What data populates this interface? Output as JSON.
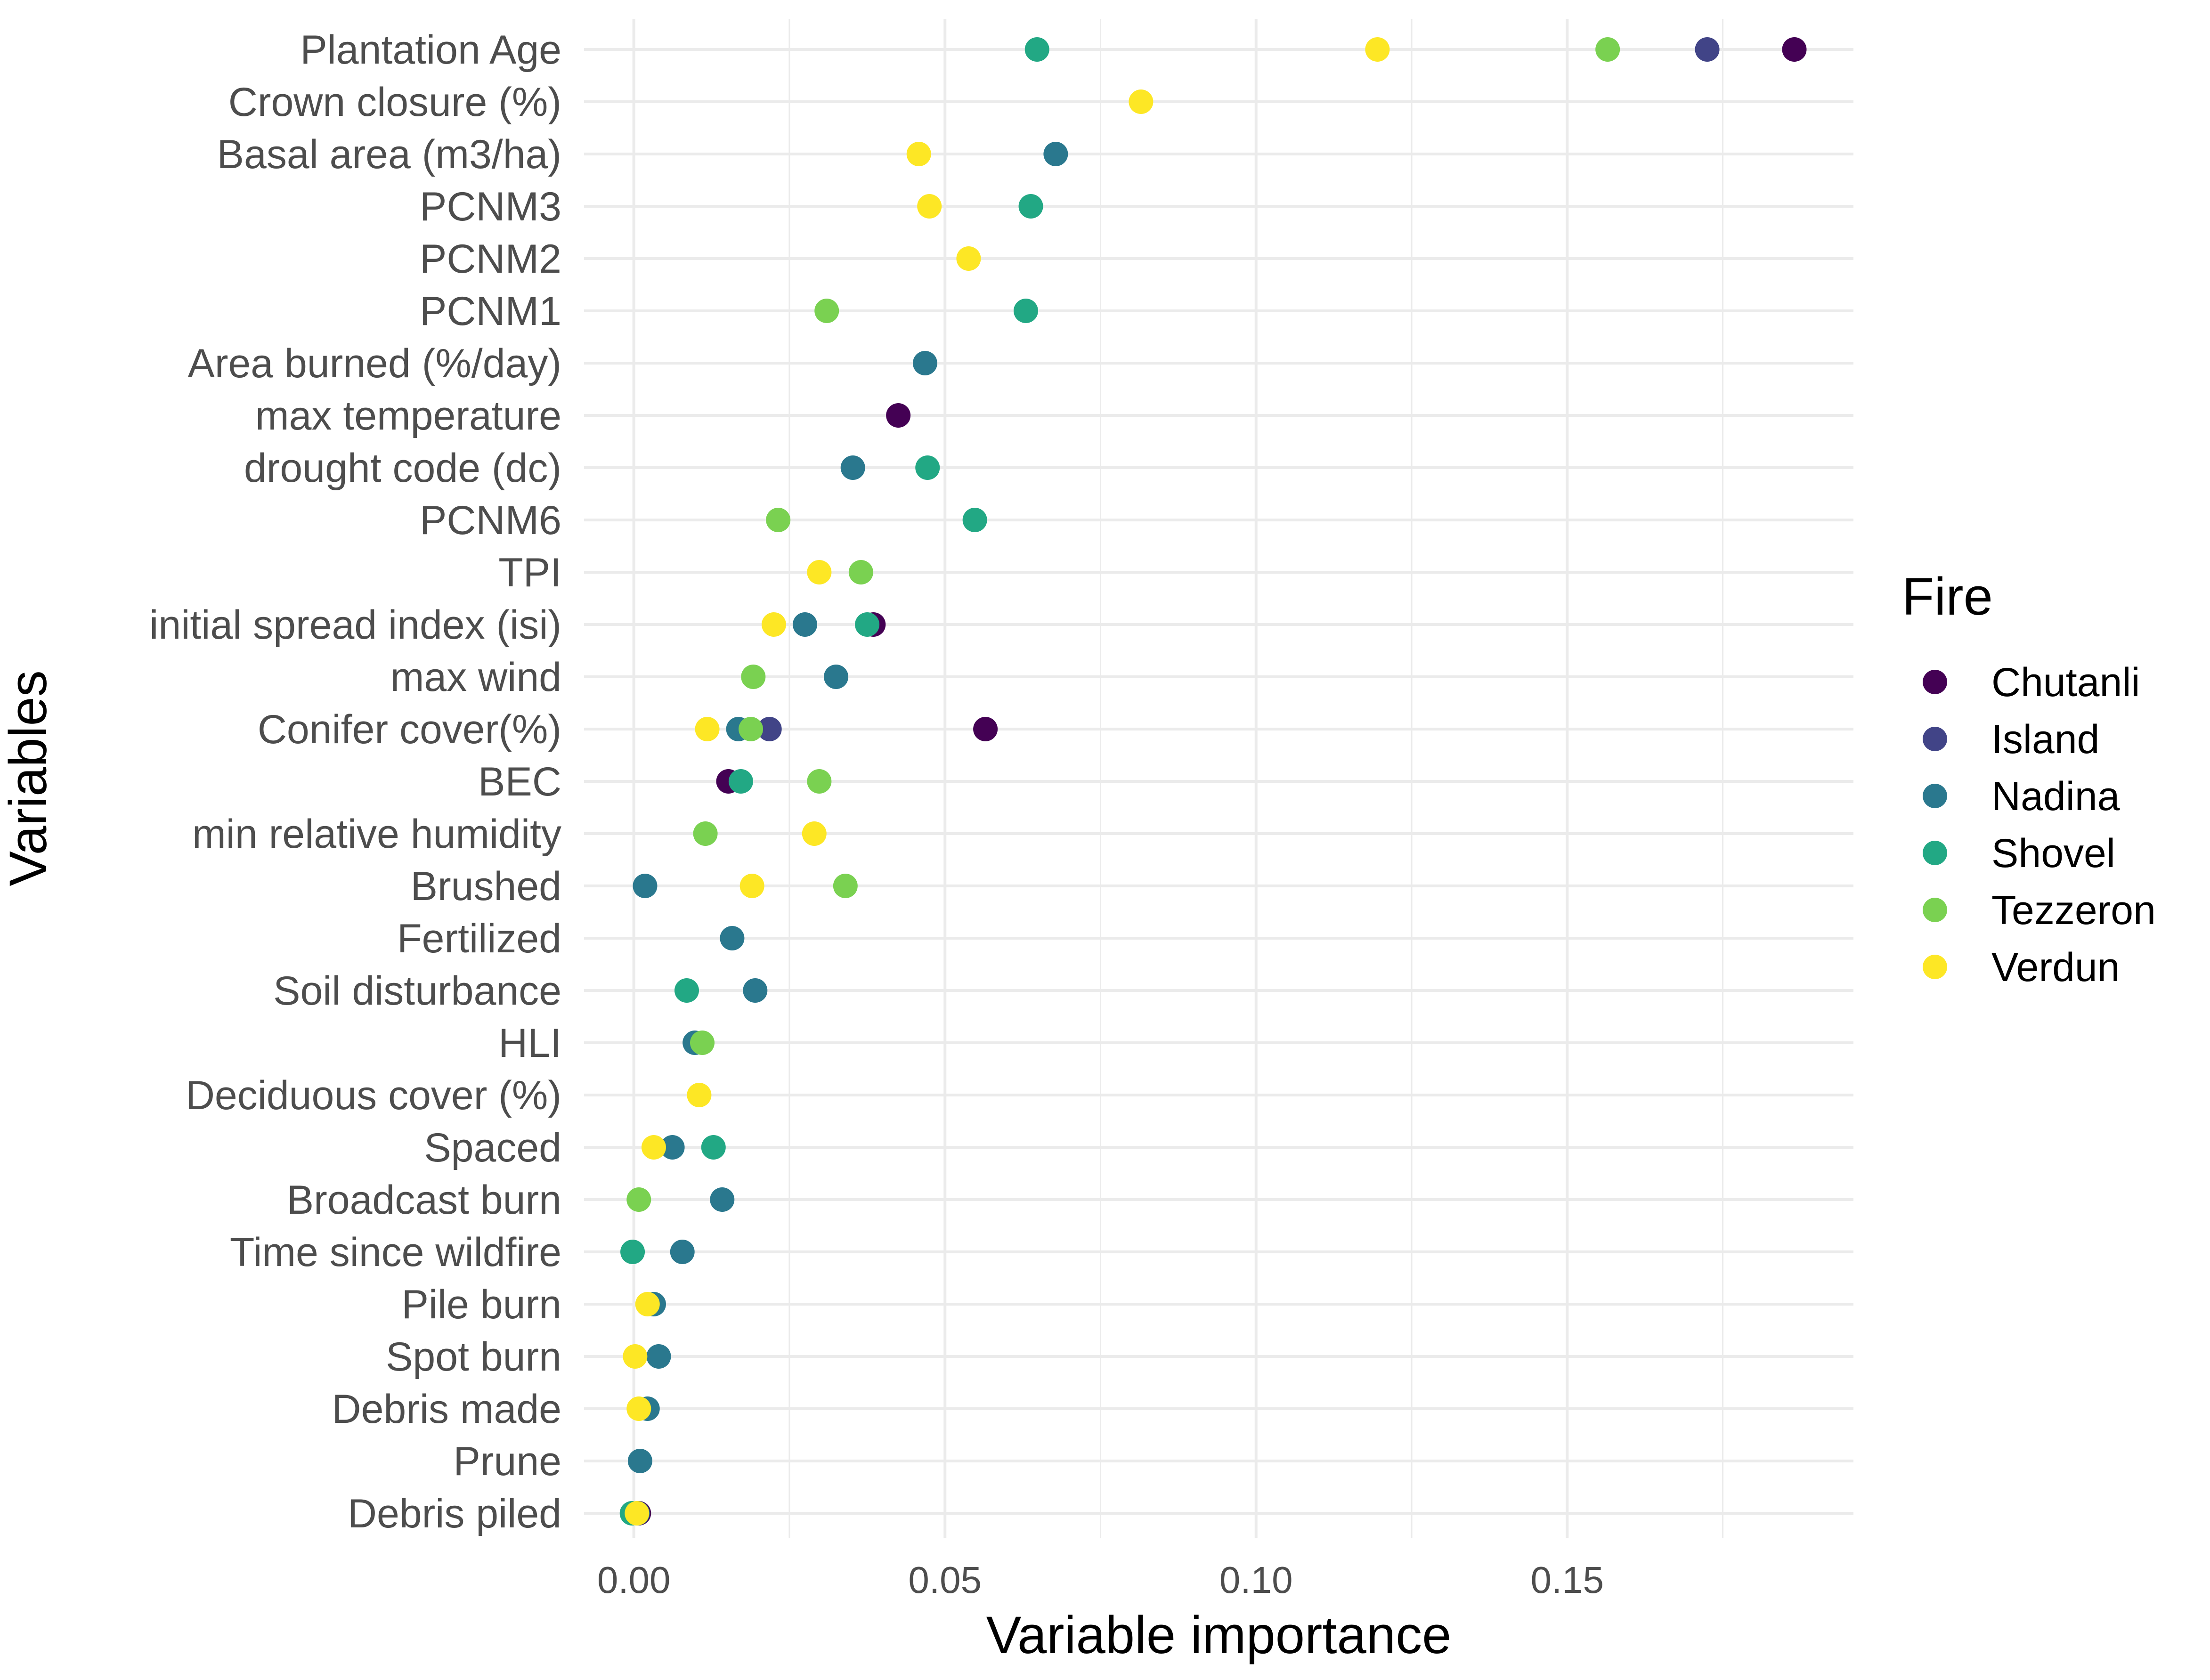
{
  "chart_data": {
    "type": "scatter",
    "xlabel": "Variable importance",
    "ylabel": "Variables",
    "xlim": [
      -0.008,
      0.196
    ],
    "x_ticks": [
      0.0,
      0.05,
      0.1,
      0.15
    ],
    "x_tick_labels": [
      "0.00",
      "0.05",
      "0.10",
      "0.15"
    ],
    "grid": true,
    "legend": {
      "title": "Fire",
      "placement": "right"
    },
    "categories": [
      "Plantation Age",
      "Crown closure (%)",
      "Basal area (m3/ha)",
      "PCNM3",
      "PCNM2",
      "PCNM1",
      "Area burned (%/day)",
      "max temperature",
      "drought code (dc)",
      "PCNM6",
      "TPI",
      "initial spread index (isi)",
      "max wind",
      "Conifer cover(%)",
      "BEC",
      "min relative humidity",
      "Brushed",
      "Fertilized",
      "Soil disturbance",
      "HLI",
      "Deciduous cover (%)",
      "Spaced",
      "Broadcast burn",
      "Time since wildfire",
      "Pile burn",
      "Spot burn",
      "Debris made",
      "Prune",
      "Debris piled"
    ],
    "series": [
      {
        "name": "Chutanli",
        "color": "#440154",
        "points": [
          [
            "Plantation Age",
            0.1865
          ],
          [
            "max temperature",
            0.0425
          ],
          [
            "initial spread index (isi)",
            0.0385
          ],
          [
            "Conifer cover(%)",
            0.0565
          ],
          [
            "BEC",
            0.0152
          ],
          [
            "Debris piled",
            0.0008
          ]
        ]
      },
      {
        "name": "Island",
        "color": "#414487",
        "points": [
          [
            "Plantation Age",
            0.1725
          ],
          [
            "Conifer cover(%)",
            0.0218
          ]
        ]
      },
      {
        "name": "Nadina",
        "color": "#2A788E",
        "points": [
          [
            "Basal area (m3/ha)",
            0.0678
          ],
          [
            "Area burned (%/day)",
            0.0468
          ],
          [
            "drought code (dc)",
            0.0352
          ],
          [
            "initial spread index (isi)",
            0.0275
          ],
          [
            "max wind",
            0.0325
          ],
          [
            "Conifer cover(%)",
            0.0168
          ],
          [
            "Brushed",
            0.0018
          ],
          [
            "Fertilized",
            0.0158
          ],
          [
            "Soil disturbance",
            0.0195
          ],
          [
            "HLI",
            0.0098
          ],
          [
            "Spaced",
            0.0062
          ],
          [
            "Broadcast burn",
            0.0142
          ],
          [
            "Time since wildfire",
            0.0078
          ],
          [
            "Pile burn",
            0.0032
          ],
          [
            "Spot burn",
            0.004
          ],
          [
            "Debris made",
            0.0022
          ],
          [
            "Prune",
            0.001
          ],
          [
            "Debris piled",
            0.0006
          ]
        ]
      },
      {
        "name": "Shovel",
        "color": "#22A884",
        "points": [
          [
            "Plantation Age",
            0.0648
          ],
          [
            "PCNM3",
            0.0638
          ],
          [
            "PCNM1",
            0.063
          ],
          [
            "drought code (dc)",
            0.0472
          ],
          [
            "PCNM6",
            0.0548
          ],
          [
            "initial spread index (isi)",
            0.0375
          ],
          [
            "BEC",
            0.0172
          ],
          [
            "Soil disturbance",
            0.0085
          ],
          [
            "Spaced",
            0.0128
          ],
          [
            "Time since wildfire",
            -0.0002
          ],
          [
            "Debris piled",
            -0.0003
          ]
        ]
      },
      {
        "name": "Tezzeron",
        "color": "#7AD151",
        "points": [
          [
            "Plantation Age",
            0.1565
          ],
          [
            "PCNM1",
            0.031
          ],
          [
            "PCNM6",
            0.0232
          ],
          [
            "TPI",
            0.0365
          ],
          [
            "max wind",
            0.0192
          ],
          [
            "Conifer cover(%)",
            0.0188
          ],
          [
            "BEC",
            0.0298
          ],
          [
            "min relative humidity",
            0.0115
          ],
          [
            "Brushed",
            0.034
          ],
          [
            "HLI",
            0.011
          ],
          [
            "Broadcast burn",
            0.0008
          ]
        ]
      },
      {
        "name": "Verdun",
        "color": "#FDE725",
        "points": [
          [
            "Plantation Age",
            0.1195
          ],
          [
            "Crown closure (%)",
            0.0815
          ],
          [
            "Basal area (m3/ha)",
            0.0458
          ],
          [
            "PCNM3",
            0.0475
          ],
          [
            "PCNM2",
            0.0538
          ],
          [
            "TPI",
            0.0298
          ],
          [
            "initial spread index (isi)",
            0.0225
          ],
          [
            "Conifer cover(%)",
            0.0118
          ],
          [
            "min relative humidity",
            0.029
          ],
          [
            "Brushed",
            0.019
          ],
          [
            "Deciduous cover (%)",
            0.0105
          ],
          [
            "Spaced",
            0.0032
          ],
          [
            "Pile burn",
            0.0022
          ],
          [
            "Spot burn",
            0.0002
          ],
          [
            "Debris made",
            0.0008
          ],
          [
            "Debris piled",
            0.0005
          ]
        ]
      }
    ]
  }
}
